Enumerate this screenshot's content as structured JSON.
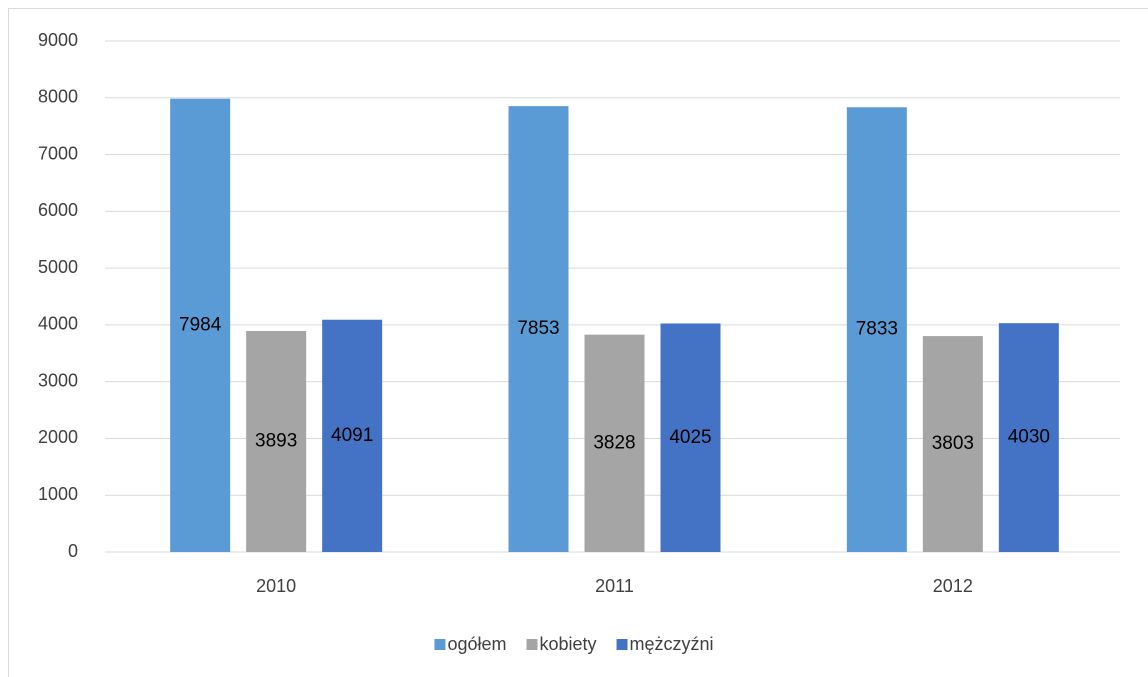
{
  "chart_data": {
    "type": "bar",
    "categories": [
      "2010",
      "2011",
      "2012"
    ],
    "series": [
      {
        "name": "ogółem",
        "color": "#5b9bd5",
        "values": [
          7984,
          7853,
          7833
        ]
      },
      {
        "name": "kobiety",
        "color": "#a5a5a5",
        "values": [
          3893,
          3828,
          3803
        ]
      },
      {
        "name": "mężczyźni",
        "color": "#4472c4",
        "values": [
          4091,
          4025,
          4030
        ]
      }
    ],
    "ylim": [
      0,
      9000
    ],
    "yticks": [
      0,
      1000,
      2000,
      3000,
      4000,
      5000,
      6000,
      7000,
      8000,
      9000
    ],
    "grid": true,
    "legend": "bottom"
  }
}
